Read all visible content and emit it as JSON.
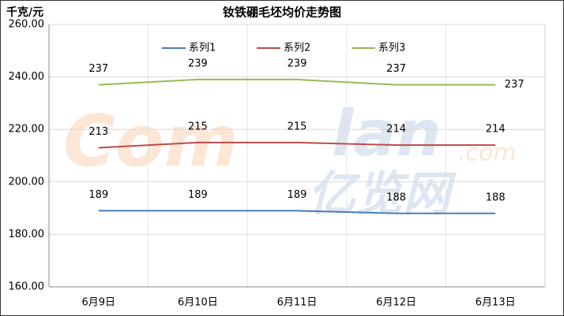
{
  "chart_data": {
    "type": "line",
    "title": "钕铁硼毛坯均价走势图",
    "y_unit": "千克/元",
    "categories": [
      "6月9日",
      "6月10日",
      "6月11日",
      "6月12日",
      "6月13日"
    ],
    "series": [
      {
        "name": "系列1",
        "color": "#4a7ebb",
        "values": [
          189,
          189,
          189,
          188,
          188
        ]
      },
      {
        "name": "系列2",
        "color": "#be4b48",
        "values": [
          213,
          215,
          215,
          214,
          214
        ]
      },
      {
        "name": "系列3",
        "color": "#98b954",
        "values": [
          237,
          239,
          239,
          237,
          237
        ]
      }
    ],
    "ylim": [
      160,
      260
    ],
    "yticks": [
      {
        "value": 160,
        "label": "160.00"
      },
      {
        "value": 180,
        "label": "180.00"
      },
      {
        "value": 200,
        "label": "200.00"
      },
      {
        "value": 220,
        "label": "220.00"
      },
      {
        "value": 240,
        "label": "240.00"
      },
      {
        "value": 260,
        "label": "260.00"
      }
    ],
    "grid": true,
    "legend": "top",
    "watermark": {
      "left": "Com",
      "right": "lan",
      "suffix": ".com",
      "brand": "亿览网"
    }
  }
}
